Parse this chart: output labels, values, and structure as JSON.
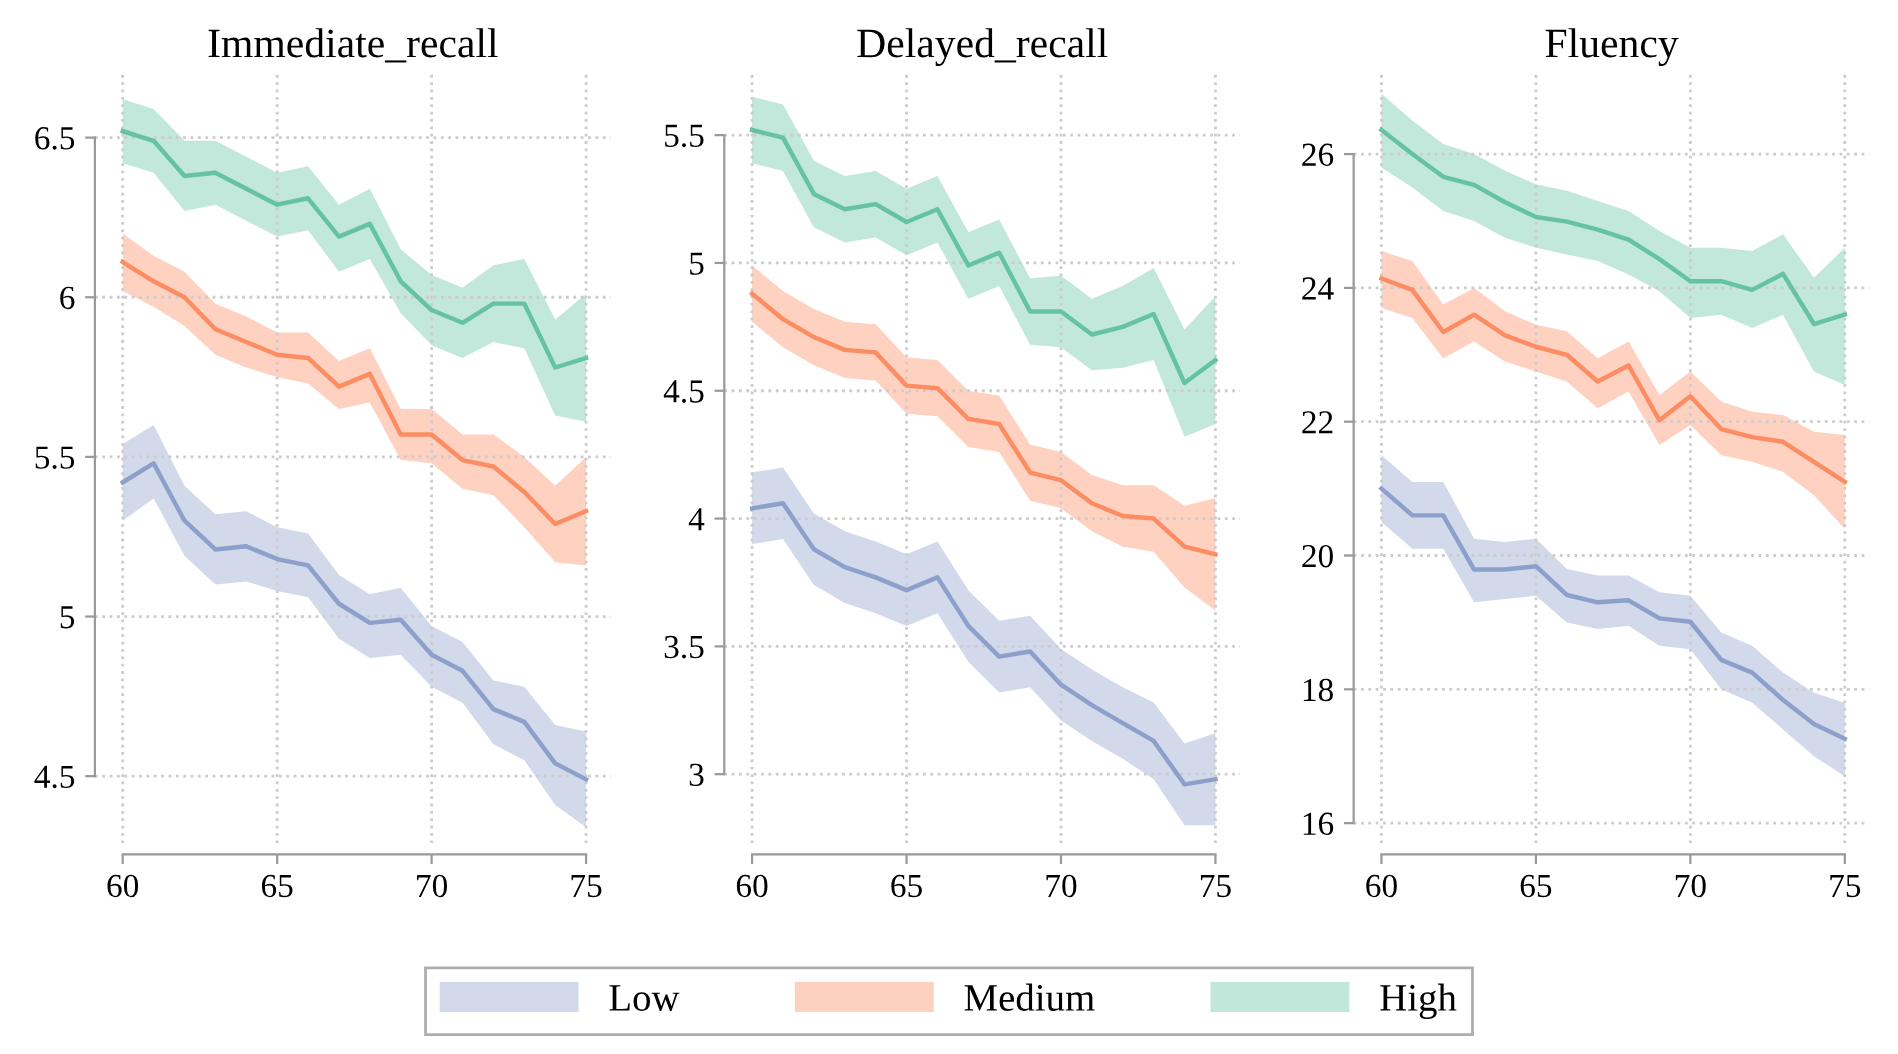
{
  "chart_data": [
    {
      "type": "line",
      "title": "Immediate_recall",
      "x": [
        60,
        61,
        62,
        63,
        64,
        65,
        66,
        67,
        68,
        69,
        70,
        71,
        72,
        73,
        74,
        75
      ],
      "xlim": [
        59.1,
        75.8
      ],
      "xticks": [
        60,
        65,
        70,
        75
      ],
      "ylim": [
        4.29,
        6.7
      ],
      "yticks": [
        4.5,
        5,
        5.5,
        6,
        6.5
      ],
      "grid": true,
      "legend": "bottom",
      "series": [
        {
          "name": "Low",
          "color": "#8da0cb",
          "values": [
            5.42,
            5.48,
            5.3,
            5.21,
            5.22,
            5.18,
            5.16,
            5.04,
            4.98,
            4.99,
            4.88,
            4.83,
            4.71,
            4.67,
            4.54,
            4.49
          ],
          "lower": [
            5.3,
            5.37,
            5.19,
            5.1,
            5.11,
            5.08,
            5.06,
            4.93,
            4.87,
            4.88,
            4.78,
            4.73,
            4.6,
            4.55,
            4.41,
            4.34
          ],
          "upper": [
            5.54,
            5.6,
            5.41,
            5.32,
            5.33,
            5.28,
            5.26,
            5.13,
            5.07,
            5.09,
            4.97,
            4.92,
            4.8,
            4.78,
            4.66,
            4.64
          ]
        },
        {
          "name": "Medium",
          "color": "#fc8d62",
          "values": [
            6.11,
            6.05,
            6.0,
            5.9,
            5.86,
            5.82,
            5.81,
            5.72,
            5.76,
            5.57,
            5.57,
            5.49,
            5.47,
            5.39,
            5.29,
            5.33
          ],
          "lower": [
            6.02,
            5.97,
            5.91,
            5.82,
            5.78,
            5.75,
            5.73,
            5.65,
            5.67,
            5.49,
            5.48,
            5.4,
            5.38,
            5.28,
            5.17,
            5.16
          ],
          "upper": [
            6.2,
            6.13,
            6.08,
            5.98,
            5.94,
            5.89,
            5.89,
            5.8,
            5.84,
            5.65,
            5.65,
            5.57,
            5.57,
            5.5,
            5.41,
            5.5
          ]
        },
        {
          "name": "High",
          "color": "#66c2a5",
          "values": [
            6.52,
            6.49,
            6.38,
            6.39,
            6.34,
            6.29,
            6.31,
            6.19,
            6.23,
            6.05,
            5.96,
            5.92,
            5.98,
            5.98,
            5.78,
            5.81
          ],
          "lower": [
            6.42,
            6.39,
            6.27,
            6.29,
            6.24,
            6.19,
            6.21,
            6.08,
            6.12,
            5.95,
            5.85,
            5.81,
            5.86,
            5.84,
            5.63,
            5.61
          ],
          "upper": [
            6.62,
            6.59,
            6.49,
            6.49,
            6.44,
            6.39,
            6.41,
            6.29,
            6.34,
            6.15,
            6.07,
            6.03,
            6.1,
            6.12,
            5.93,
            6.01
          ]
        }
      ]
    },
    {
      "type": "line",
      "title": "Delayed_recall",
      "x": [
        60,
        61,
        62,
        63,
        64,
        65,
        66,
        67,
        68,
        69,
        70,
        71,
        72,
        73,
        74,
        75
      ],
      "xlim": [
        59.1,
        75.8
      ],
      "xticks": [
        60,
        65,
        70,
        75
      ],
      "ylim": [
        2.73,
        5.74
      ],
      "yticks": [
        3,
        3.5,
        4,
        4.5,
        5,
        5.5
      ],
      "grid": true,
      "series": [
        {
          "name": "Low",
          "color": "#8da0cb",
          "values": [
            4.04,
            4.06,
            3.88,
            3.81,
            3.77,
            3.72,
            3.77,
            3.58,
            3.46,
            3.48,
            3.35,
            3.27,
            3.2,
            3.13,
            2.96,
            2.98
          ],
          "lower": [
            3.9,
            3.92,
            3.74,
            3.67,
            3.63,
            3.58,
            3.63,
            3.44,
            3.32,
            3.34,
            3.21,
            3.13,
            3.06,
            2.98,
            2.8,
            2.8
          ],
          "upper": [
            4.18,
            4.2,
            4.02,
            3.95,
            3.91,
            3.86,
            3.91,
            3.72,
            3.6,
            3.62,
            3.49,
            3.41,
            3.34,
            3.28,
            3.12,
            3.16
          ]
        },
        {
          "name": "Medium",
          "color": "#fc8d62",
          "values": [
            4.88,
            4.78,
            4.71,
            4.66,
            4.65,
            4.52,
            4.51,
            4.39,
            4.37,
            4.18,
            4.15,
            4.06,
            4.01,
            4.0,
            3.89,
            3.86
          ],
          "lower": [
            4.77,
            4.67,
            4.6,
            4.55,
            4.54,
            4.41,
            4.4,
            4.28,
            4.26,
            4.07,
            4.04,
            3.95,
            3.89,
            3.87,
            3.73,
            3.64
          ],
          "upper": [
            4.99,
            4.89,
            4.82,
            4.77,
            4.76,
            4.63,
            4.62,
            4.5,
            4.48,
            4.29,
            4.26,
            4.17,
            4.13,
            4.13,
            4.05,
            4.08
          ]
        },
        {
          "name": "High",
          "color": "#66c2a5",
          "values": [
            5.52,
            5.49,
            5.27,
            5.21,
            5.23,
            5.16,
            5.21,
            4.99,
            5.04,
            4.81,
            4.81,
            4.72,
            4.75,
            4.8,
            4.53,
            4.62
          ],
          "lower": [
            5.39,
            5.36,
            5.14,
            5.08,
            5.1,
            5.03,
            5.08,
            4.86,
            4.91,
            4.68,
            4.67,
            4.58,
            4.59,
            4.62,
            4.32,
            4.37
          ],
          "upper": [
            5.65,
            5.62,
            5.4,
            5.34,
            5.36,
            5.29,
            5.34,
            5.12,
            5.17,
            4.94,
            4.95,
            4.86,
            4.91,
            4.98,
            4.74,
            4.87
          ]
        }
      ]
    },
    {
      "type": "line",
      "title": "Fluency",
      "x": [
        60,
        61,
        62,
        63,
        64,
        65,
        66,
        67,
        68,
        69,
        70,
        71,
        72,
        73,
        74,
        75
      ],
      "xlim": [
        59.1,
        75.8
      ],
      "xticks": [
        60,
        65,
        70,
        75
      ],
      "ylim": [
        15.7,
        27.2
      ],
      "yticks": [
        16,
        18,
        20,
        22,
        24,
        26
      ],
      "grid": true,
      "series": [
        {
          "name": "Low",
          "color": "#8da0cb",
          "values": [
            21.0,
            20.6,
            20.6,
            19.79,
            19.79,
            19.84,
            19.41,
            19.3,
            19.33,
            19.06,
            19.01,
            18.44,
            18.25,
            17.84,
            17.48,
            17.26
          ],
          "lower": [
            20.5,
            20.1,
            20.1,
            19.3,
            19.35,
            19.4,
            19.0,
            18.9,
            18.95,
            18.65,
            18.6,
            18.0,
            17.8,
            17.4,
            17.0,
            16.7
          ],
          "upper": [
            21.5,
            21.1,
            21.1,
            20.25,
            20.2,
            20.25,
            19.8,
            19.7,
            19.7,
            19.45,
            19.4,
            18.85,
            18.65,
            18.25,
            17.95,
            17.8
          ]
        },
        {
          "name": "Medium",
          "color": "#fc8d62",
          "values": [
            24.14,
            23.97,
            23.34,
            23.6,
            23.29,
            23.12,
            23.0,
            22.6,
            22.84,
            22.02,
            22.38,
            21.89,
            21.77,
            21.7,
            21.4,
            21.1
          ],
          "lower": [
            23.7,
            23.55,
            22.95,
            23.2,
            22.9,
            22.75,
            22.6,
            22.2,
            22.45,
            21.65,
            21.95,
            21.5,
            21.4,
            21.25,
            20.9,
            20.4
          ],
          "upper": [
            24.55,
            24.4,
            23.75,
            24.0,
            23.65,
            23.45,
            23.35,
            22.95,
            23.2,
            22.4,
            22.75,
            22.3,
            22.15,
            22.1,
            21.85,
            21.8
          ]
        },
        {
          "name": "High",
          "color": "#66c2a5",
          "values": [
            26.36,
            26.0,
            25.66,
            25.54,
            25.28,
            25.06,
            24.99,
            24.87,
            24.72,
            24.43,
            24.1,
            24.1,
            23.97,
            24.21,
            23.46,
            23.6
          ],
          "lower": [
            25.8,
            25.5,
            25.15,
            25.0,
            24.75,
            24.6,
            24.5,
            24.4,
            24.2,
            23.95,
            23.55,
            23.6,
            23.4,
            23.6,
            22.75,
            22.55
          ],
          "upper": [
            26.9,
            26.5,
            26.15,
            26.0,
            25.75,
            25.55,
            25.45,
            25.3,
            25.15,
            24.85,
            24.6,
            24.6,
            24.55,
            24.8,
            24.15,
            24.6
          ]
        }
      ]
    }
  ]
}
